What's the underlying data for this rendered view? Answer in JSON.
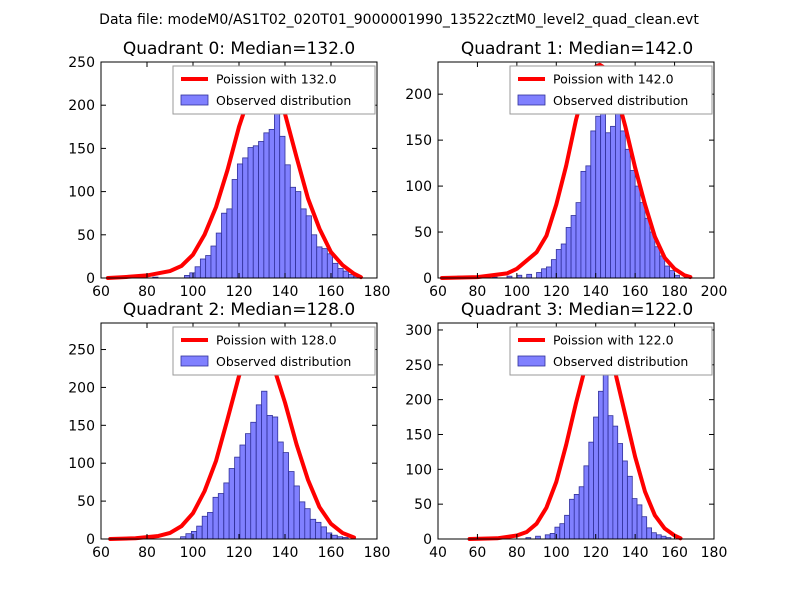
{
  "suptitle": "Data file: modeM0/AS1T02_020T01_9000001990_13522cztM0_level2_quad_clean.evt",
  "colors": {
    "bar_fill": "#8080ff",
    "bar_edge": "#30309a",
    "curve": "#ff0000",
    "axes": "#000000",
    "legend_edge": "#9a9a9a",
    "background": "#ffffff"
  },
  "chart_data": [
    {
      "type": "bar",
      "title": "Quadrant 0: Median=132.0",
      "xlim": [
        60,
        180
      ],
      "ylim": [
        0,
        250
      ],
      "xticks": [
        60,
        80,
        100,
        120,
        140,
        160,
        180
      ],
      "yticks": [
        0,
        50,
        100,
        150,
        200,
        250
      ],
      "legend": [
        "Poission with 132.0",
        "Observed distribution"
      ],
      "legend_position": "top-right",
      "bin_width": 2.3,
      "bins": [
        [
          64.1,
          1
        ],
        [
          66.4,
          1
        ],
        [
          75.6,
          2
        ],
        [
          82.5,
          1
        ],
        [
          96.3,
          3
        ],
        [
          98.6,
          6
        ],
        [
          100.9,
          13
        ],
        [
          103.2,
          22
        ],
        [
          105.5,
          26
        ],
        [
          107.8,
          37
        ],
        [
          110.1,
          52
        ],
        [
          112.4,
          75
        ],
        [
          114.7,
          80
        ],
        [
          117.0,
          114
        ],
        [
          119.3,
          132
        ],
        [
          121.6,
          139
        ],
        [
          123.9,
          151
        ],
        [
          126.2,
          153
        ],
        [
          128.5,
          158
        ],
        [
          130.8,
          168
        ],
        [
          133.1,
          172
        ],
        [
          135.4,
          202
        ],
        [
          137.7,
          164
        ],
        [
          140.0,
          131
        ],
        [
          142.3,
          105
        ],
        [
          144.6,
          100
        ],
        [
          146.9,
          80
        ],
        [
          149.2,
          72
        ],
        [
          151.5,
          50
        ],
        [
          153.8,
          36
        ],
        [
          156.1,
          34
        ],
        [
          158.4,
          28
        ],
        [
          160.7,
          17
        ],
        [
          163.0,
          11
        ],
        [
          165.3,
          8
        ],
        [
          167.6,
          4
        ],
        [
          169.9,
          2
        ]
      ],
      "curve_x": [
        63,
        70,
        80,
        90,
        95,
        100,
        105,
        110,
        115,
        120,
        125,
        130,
        132,
        135,
        140,
        145,
        150,
        155,
        160,
        165,
        170,
        173
      ],
      "curve_y": [
        0,
        1,
        3,
        8,
        14,
        27,
        50,
        82,
        125,
        175,
        215,
        234,
        235,
        228,
        190,
        140,
        92,
        57,
        30,
        15,
        5,
        1
      ]
    },
    {
      "type": "bar",
      "title": "Quadrant 1: Median=142.0",
      "xlim": [
        60,
        200
      ],
      "ylim": [
        0,
        235
      ],
      "xticks": [
        60,
        80,
        100,
        120,
        140,
        160,
        180,
        200
      ],
      "yticks": [
        0,
        50,
        100,
        150,
        200
      ],
      "legend": [
        "Poission with 142.0",
        "Observed distribution"
      ],
      "legend_position": "top-right",
      "bin_width": 2.5,
      "bins": [
        [
          70,
          2
        ],
        [
          77.5,
          1
        ],
        [
          82.5,
          2
        ],
        [
          87.5,
          1
        ],
        [
          95,
          2
        ],
        [
          100,
          3
        ],
        [
          105,
          4
        ],
        [
          110,
          6
        ],
        [
          112.5,
          10
        ],
        [
          115,
          12
        ],
        [
          117.5,
          20
        ],
        [
          120,
          31
        ],
        [
          122.5,
          37
        ],
        [
          125,
          55
        ],
        [
          127.5,
          68
        ],
        [
          130,
          82
        ],
        [
          132.5,
          116
        ],
        [
          135,
          122
        ],
        [
          137.5,
          160
        ],
        [
          140,
          176
        ],
        [
          142.5,
          205
        ],
        [
          145,
          158
        ],
        [
          147.5,
          165
        ],
        [
          150,
          208
        ],
        [
          152.5,
          160
        ],
        [
          155,
          140
        ],
        [
          157.5,
          117
        ],
        [
          160,
          100
        ],
        [
          162.5,
          82
        ],
        [
          165,
          65
        ],
        [
          167.5,
          50
        ],
        [
          170,
          34
        ],
        [
          172.5,
          24
        ],
        [
          175,
          13
        ],
        [
          177.5,
          8
        ],
        [
          180,
          3
        ],
        [
          185,
          1
        ]
      ],
      "curve_x": [
        62,
        80,
        95,
        100,
        110,
        115,
        120,
        125,
        130,
        135,
        140,
        142,
        145,
        150,
        155,
        160,
        165,
        170,
        175,
        180,
        185,
        188
      ],
      "curve_y": [
        0,
        1,
        5,
        10,
        28,
        46,
        80,
        122,
        172,
        212,
        230,
        232,
        228,
        205,
        165,
        120,
        80,
        45,
        22,
        10,
        3,
        1
      ]
    },
    {
      "type": "bar",
      "title": "Quadrant 2: Median=128.0",
      "xlim": [
        60,
        180
      ],
      "ylim": [
        0,
        285
      ],
      "xticks": [
        60,
        80,
        100,
        120,
        140,
        160,
        180
      ],
      "yticks": [
        0,
        50,
        100,
        150,
        200,
        250
      ],
      "legend": [
        "Poission with 128.0",
        "Observed distribution"
      ],
      "legend_position": "top-right",
      "bin_width": 2.35,
      "bins": [
        [
          64.2,
          2
        ],
        [
          80.5,
          3
        ],
        [
          94.6,
          3
        ],
        [
          96.9,
          7
        ],
        [
          99.3,
          10
        ],
        [
          101.6,
          17
        ],
        [
          104.0,
          30
        ],
        [
          106.3,
          35
        ],
        [
          108.7,
          55
        ],
        [
          111.0,
          60
        ],
        [
          113.4,
          74
        ],
        [
          115.7,
          93
        ],
        [
          118.1,
          108
        ],
        [
          120.4,
          124
        ],
        [
          122.8,
          139
        ],
        [
          125.1,
          154
        ],
        [
          127.5,
          177
        ],
        [
          129.8,
          195
        ],
        [
          132.2,
          163
        ],
        [
          134.5,
          161
        ],
        [
          136.9,
          128
        ],
        [
          139.2,
          114
        ],
        [
          141.6,
          89
        ],
        [
          143.9,
          70
        ],
        [
          146.3,
          49
        ],
        [
          148.6,
          40
        ],
        [
          151.0,
          26
        ],
        [
          153.3,
          22
        ],
        [
          155.7,
          16
        ],
        [
          158.0,
          8
        ],
        [
          160.4,
          5
        ],
        [
          162.7,
          3
        ],
        [
          165.1,
          2
        ]
      ],
      "curve_x": [
        64,
        75,
        85,
        90,
        95,
        100,
        105,
        110,
        115,
        120,
        125,
        128,
        130,
        135,
        140,
        145,
        150,
        155,
        160,
        165,
        170
      ],
      "curve_y": [
        0,
        1,
        4,
        8,
        17,
        34,
        63,
        103,
        158,
        215,
        255,
        262,
        258,
        228,
        180,
        125,
        78,
        42,
        20,
        8,
        2
      ]
    },
    {
      "type": "bar",
      "title": "Quadrant 3: Median=122.0",
      "xlim": [
        40,
        180
      ],
      "ylim": [
        0,
        310
      ],
      "xticks": [
        40,
        60,
        80,
        100,
        120,
        140,
        160,
        180
      ],
      "yticks": [
        0,
        50,
        100,
        150,
        200,
        250,
        300
      ],
      "legend": [
        "Poission with 122.0",
        "Observed distribution"
      ],
      "legend_position": "top-right",
      "bin_width": 2.45,
      "bins": [
        [
          57.6,
          1
        ],
        [
          72.3,
          1
        ],
        [
          84.6,
          2
        ],
        [
          89.5,
          4
        ],
        [
          94.4,
          6
        ],
        [
          96.9,
          8
        ],
        [
          99.3,
          17
        ],
        [
          101.8,
          22
        ],
        [
          104.2,
          34
        ],
        [
          106.7,
          57
        ],
        [
          109.1,
          64
        ],
        [
          111.6,
          75
        ],
        [
          114.0,
          105
        ],
        [
          116.5,
          139
        ],
        [
          118.9,
          175
        ],
        [
          121.4,
          212
        ],
        [
          123.8,
          256
        ],
        [
          126.3,
          177
        ],
        [
          128.7,
          162
        ],
        [
          131.2,
          137
        ],
        [
          133.6,
          112
        ],
        [
          136.1,
          90
        ],
        [
          138.5,
          58
        ],
        [
          141.0,
          49
        ],
        [
          143.4,
          32
        ],
        [
          145.9,
          16
        ],
        [
          148.3,
          9
        ],
        [
          150.8,
          6
        ],
        [
          153.2,
          4
        ],
        [
          155.7,
          2
        ]
      ],
      "curve_x": [
        56,
        70,
        80,
        85,
        90,
        95,
        100,
        105,
        110,
        115,
        120,
        122,
        125,
        130,
        135,
        140,
        145,
        150,
        155,
        160,
        163
      ],
      "curve_y": [
        0,
        1,
        5,
        10,
        22,
        45,
        82,
        135,
        195,
        250,
        286,
        290,
        282,
        238,
        178,
        118,
        68,
        34,
        15,
        5,
        1
      ]
    }
  ]
}
